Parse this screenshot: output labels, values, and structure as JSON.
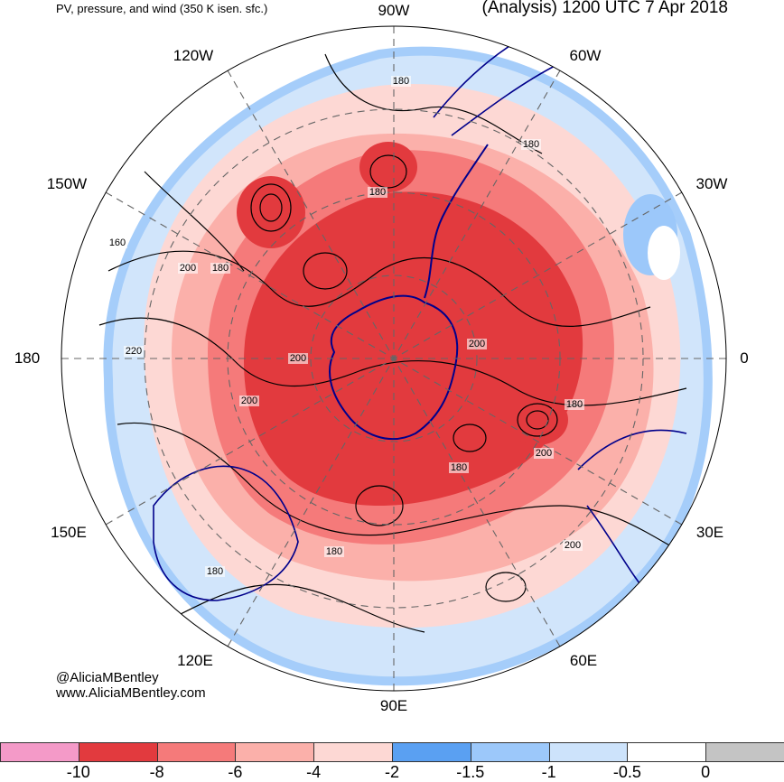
{
  "header": {
    "left_title": "PV, pressure, and wind (350 K isen. sfc.)",
    "right_title": "(Analysis) 1200 UTC 7 Apr 2018"
  },
  "credits": {
    "handle": "@AliciaMBentley",
    "website": "www.AliciaMBentley.com"
  },
  "map": {
    "projection": "south-polar-stereographic",
    "longitude_labels": [
      "90W",
      "60W",
      "30W",
      "0",
      "30E",
      "60E",
      "90E",
      "120E",
      "150E",
      "180",
      "150W",
      "120W"
    ],
    "contour_labels": [
      "180",
      "180",
      "180",
      "160",
      "200",
      "180",
      "220",
      "200",
      "200",
      "200",
      "180",
      "200",
      "180",
      "180",
      "200",
      "180"
    ],
    "colors": {
      "ocean": "#ffffff",
      "coastline": "#00008b",
      "graticule": "#666666",
      "contour": "#000000"
    }
  },
  "colorbar": {
    "ticks": [
      "-10",
      "-8",
      "-6",
      "-4",
      "-2",
      "-1.5",
      "-1",
      "-0.5",
      "0"
    ],
    "colors": [
      "#f49ac8",
      "#e23a3e",
      "#f57a7a",
      "#fbb0aa",
      "#fdd8d4",
      "#5aa0f2",
      "#9cc8fa",
      "#cde3fb",
      "#ffffff",
      "#c4c4c4"
    ]
  }
}
